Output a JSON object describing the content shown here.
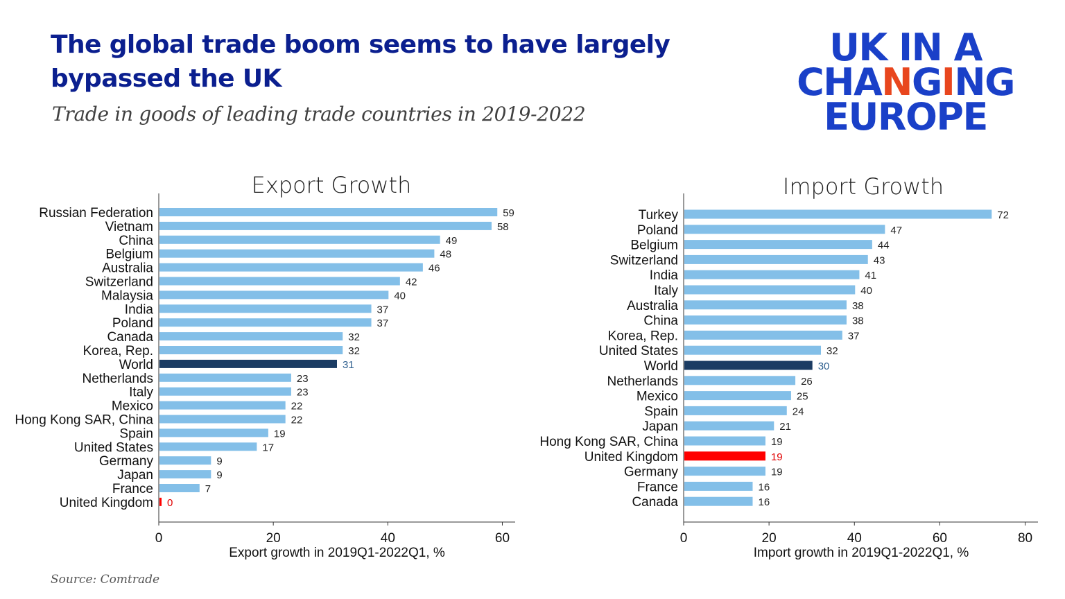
{
  "header": {
    "title": "The global trade boom seems to have largely bypassed the UK",
    "subtitle": "Trade in goods of leading trade countries in 2019-2022"
  },
  "logo": {
    "line1": "UK IN A",
    "line2": "CHANGING",
    "line3": "EUROPE",
    "text_color": "#1a40c8",
    "accent_color": "#e8461e"
  },
  "footer": {
    "source": "Source: Comtrade"
  },
  "colors": {
    "default_bar": "#83bfe8",
    "world_bar": "#1b3c63",
    "uk_bar": "#ff0000",
    "world_label": "#2e5f8f",
    "uk_label": "#e00000"
  },
  "chart_data": [
    {
      "type": "bar",
      "orientation": "horizontal",
      "title": "Export Growth",
      "xlabel": "Export growth in 2019Q1-2022Q1, %",
      "xlim": [
        0,
        62
      ],
      "xticks": [
        0,
        20,
        40,
        60
      ],
      "categories": [
        "Russian Federation",
        "Vietnam",
        "China",
        "Belgium",
        "Australia",
        "Switzerland",
        "Malaysia",
        "India",
        "Poland",
        "Canada",
        "Korea, Rep.",
        "World",
        "Netherlands",
        "Italy",
        "Mexico",
        "Hong Kong SAR, China",
        "Spain",
        "United States",
        "Germany",
        "Japan",
        "France",
        "United Kingdom"
      ],
      "values": [
        59,
        58,
        49,
        48,
        46,
        42,
        40,
        37,
        37,
        32,
        32,
        31,
        23,
        23,
        22,
        22,
        19,
        17,
        9,
        9,
        7,
        0
      ],
      "highlight": {
        "World": "world",
        "United Kingdom": "uk"
      }
    },
    {
      "type": "bar",
      "orientation": "horizontal",
      "title": "Import Growth",
      "xlabel": "Import growth in 2019Q1-2022Q1, %",
      "xlim": [
        0,
        83
      ],
      "xticks": [
        0,
        20,
        40,
        60,
        80
      ],
      "categories": [
        "Turkey",
        "Poland",
        "Belgium",
        "Switzerland",
        "India",
        "Italy",
        "Australia",
        "China",
        "Korea, Rep.",
        "United States",
        "World",
        "Netherlands",
        "Mexico",
        "Spain",
        "Japan",
        "Hong Kong SAR, China",
        "United Kingdom",
        "Germany",
        "France",
        "Canada"
      ],
      "values": [
        72,
        47,
        44,
        43,
        41,
        40,
        38,
        38,
        37,
        32,
        30,
        26,
        25,
        24,
        21,
        19,
        19,
        19,
        16,
        16
      ],
      "highlight": {
        "World": "world",
        "United Kingdom": "uk"
      }
    }
  ]
}
